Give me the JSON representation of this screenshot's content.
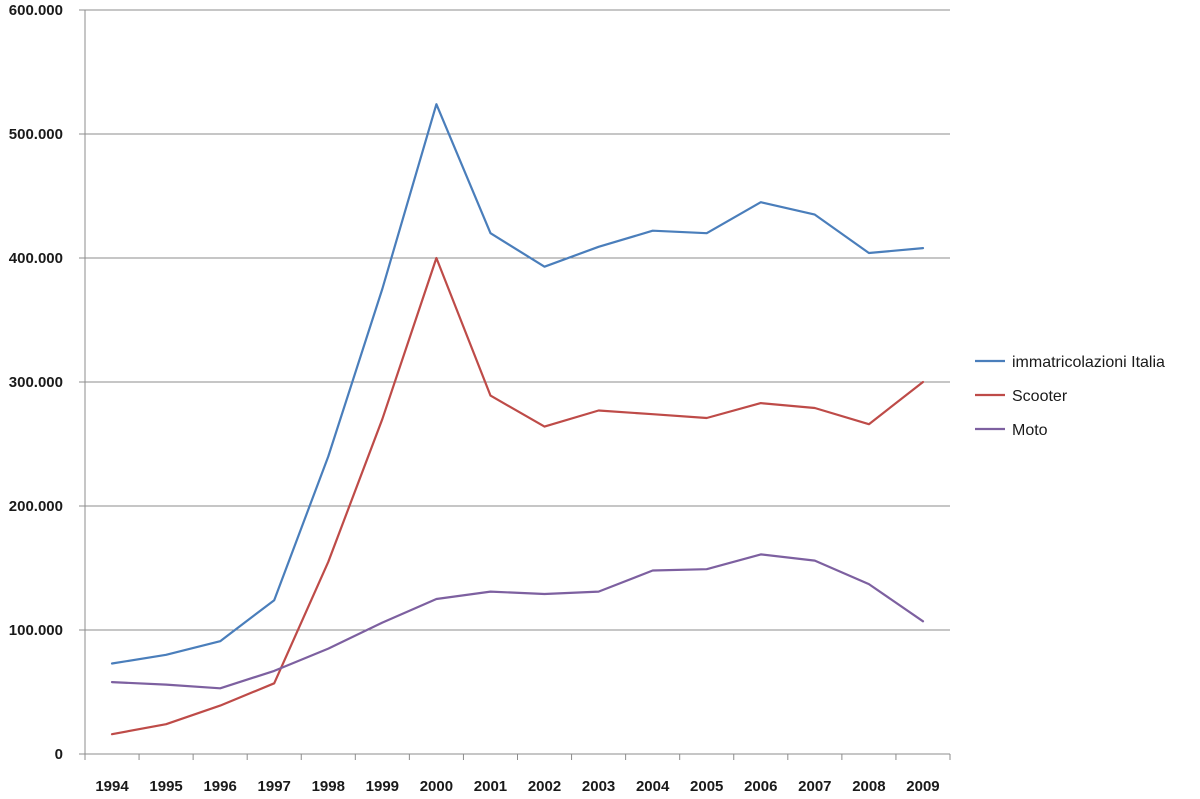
{
  "chart_data": {
    "type": "line",
    "title": "",
    "xlabel": "",
    "ylabel": "",
    "categories": [
      "1994",
      "1995",
      "1996",
      "1997",
      "1998",
      "1999",
      "2000",
      "2001",
      "2002",
      "2003",
      "2004",
      "2005",
      "2006",
      "2007",
      "2008",
      "2009"
    ],
    "y_tick_labels": [
      "0",
      "100.000",
      "200.000",
      "300.000",
      "400.000",
      "500.000",
      "600.000"
    ],
    "y_ticks": [
      0,
      100000,
      200000,
      300000,
      400000,
      500000,
      600000
    ],
    "ylim": [
      0,
      600000
    ],
    "grid": "horizontal",
    "legend_position": "right",
    "series": [
      {
        "name": "immatricolazioni Italia",
        "color": "#4a7ebb",
        "values": [
          73000,
          80000,
          91000,
          124000,
          240000,
          375000,
          524000,
          420000,
          393000,
          409000,
          422000,
          420000,
          445000,
          435000,
          404000,
          408000
        ]
      },
      {
        "name": "Scooter",
        "color": "#be4b48",
        "values": [
          16000,
          24000,
          39000,
          57000,
          155000,
          270000,
          400000,
          289000,
          264000,
          277000,
          274000,
          271000,
          283000,
          279000,
          266000,
          300000
        ]
      },
      {
        "name": "Moto",
        "color": "#7d60a0",
        "values": [
          58000,
          56000,
          53000,
          67000,
          85000,
          106000,
          125000,
          131000,
          129000,
          131000,
          148000,
          149000,
          161000,
          156000,
          137000,
          107000
        ]
      }
    ]
  }
}
